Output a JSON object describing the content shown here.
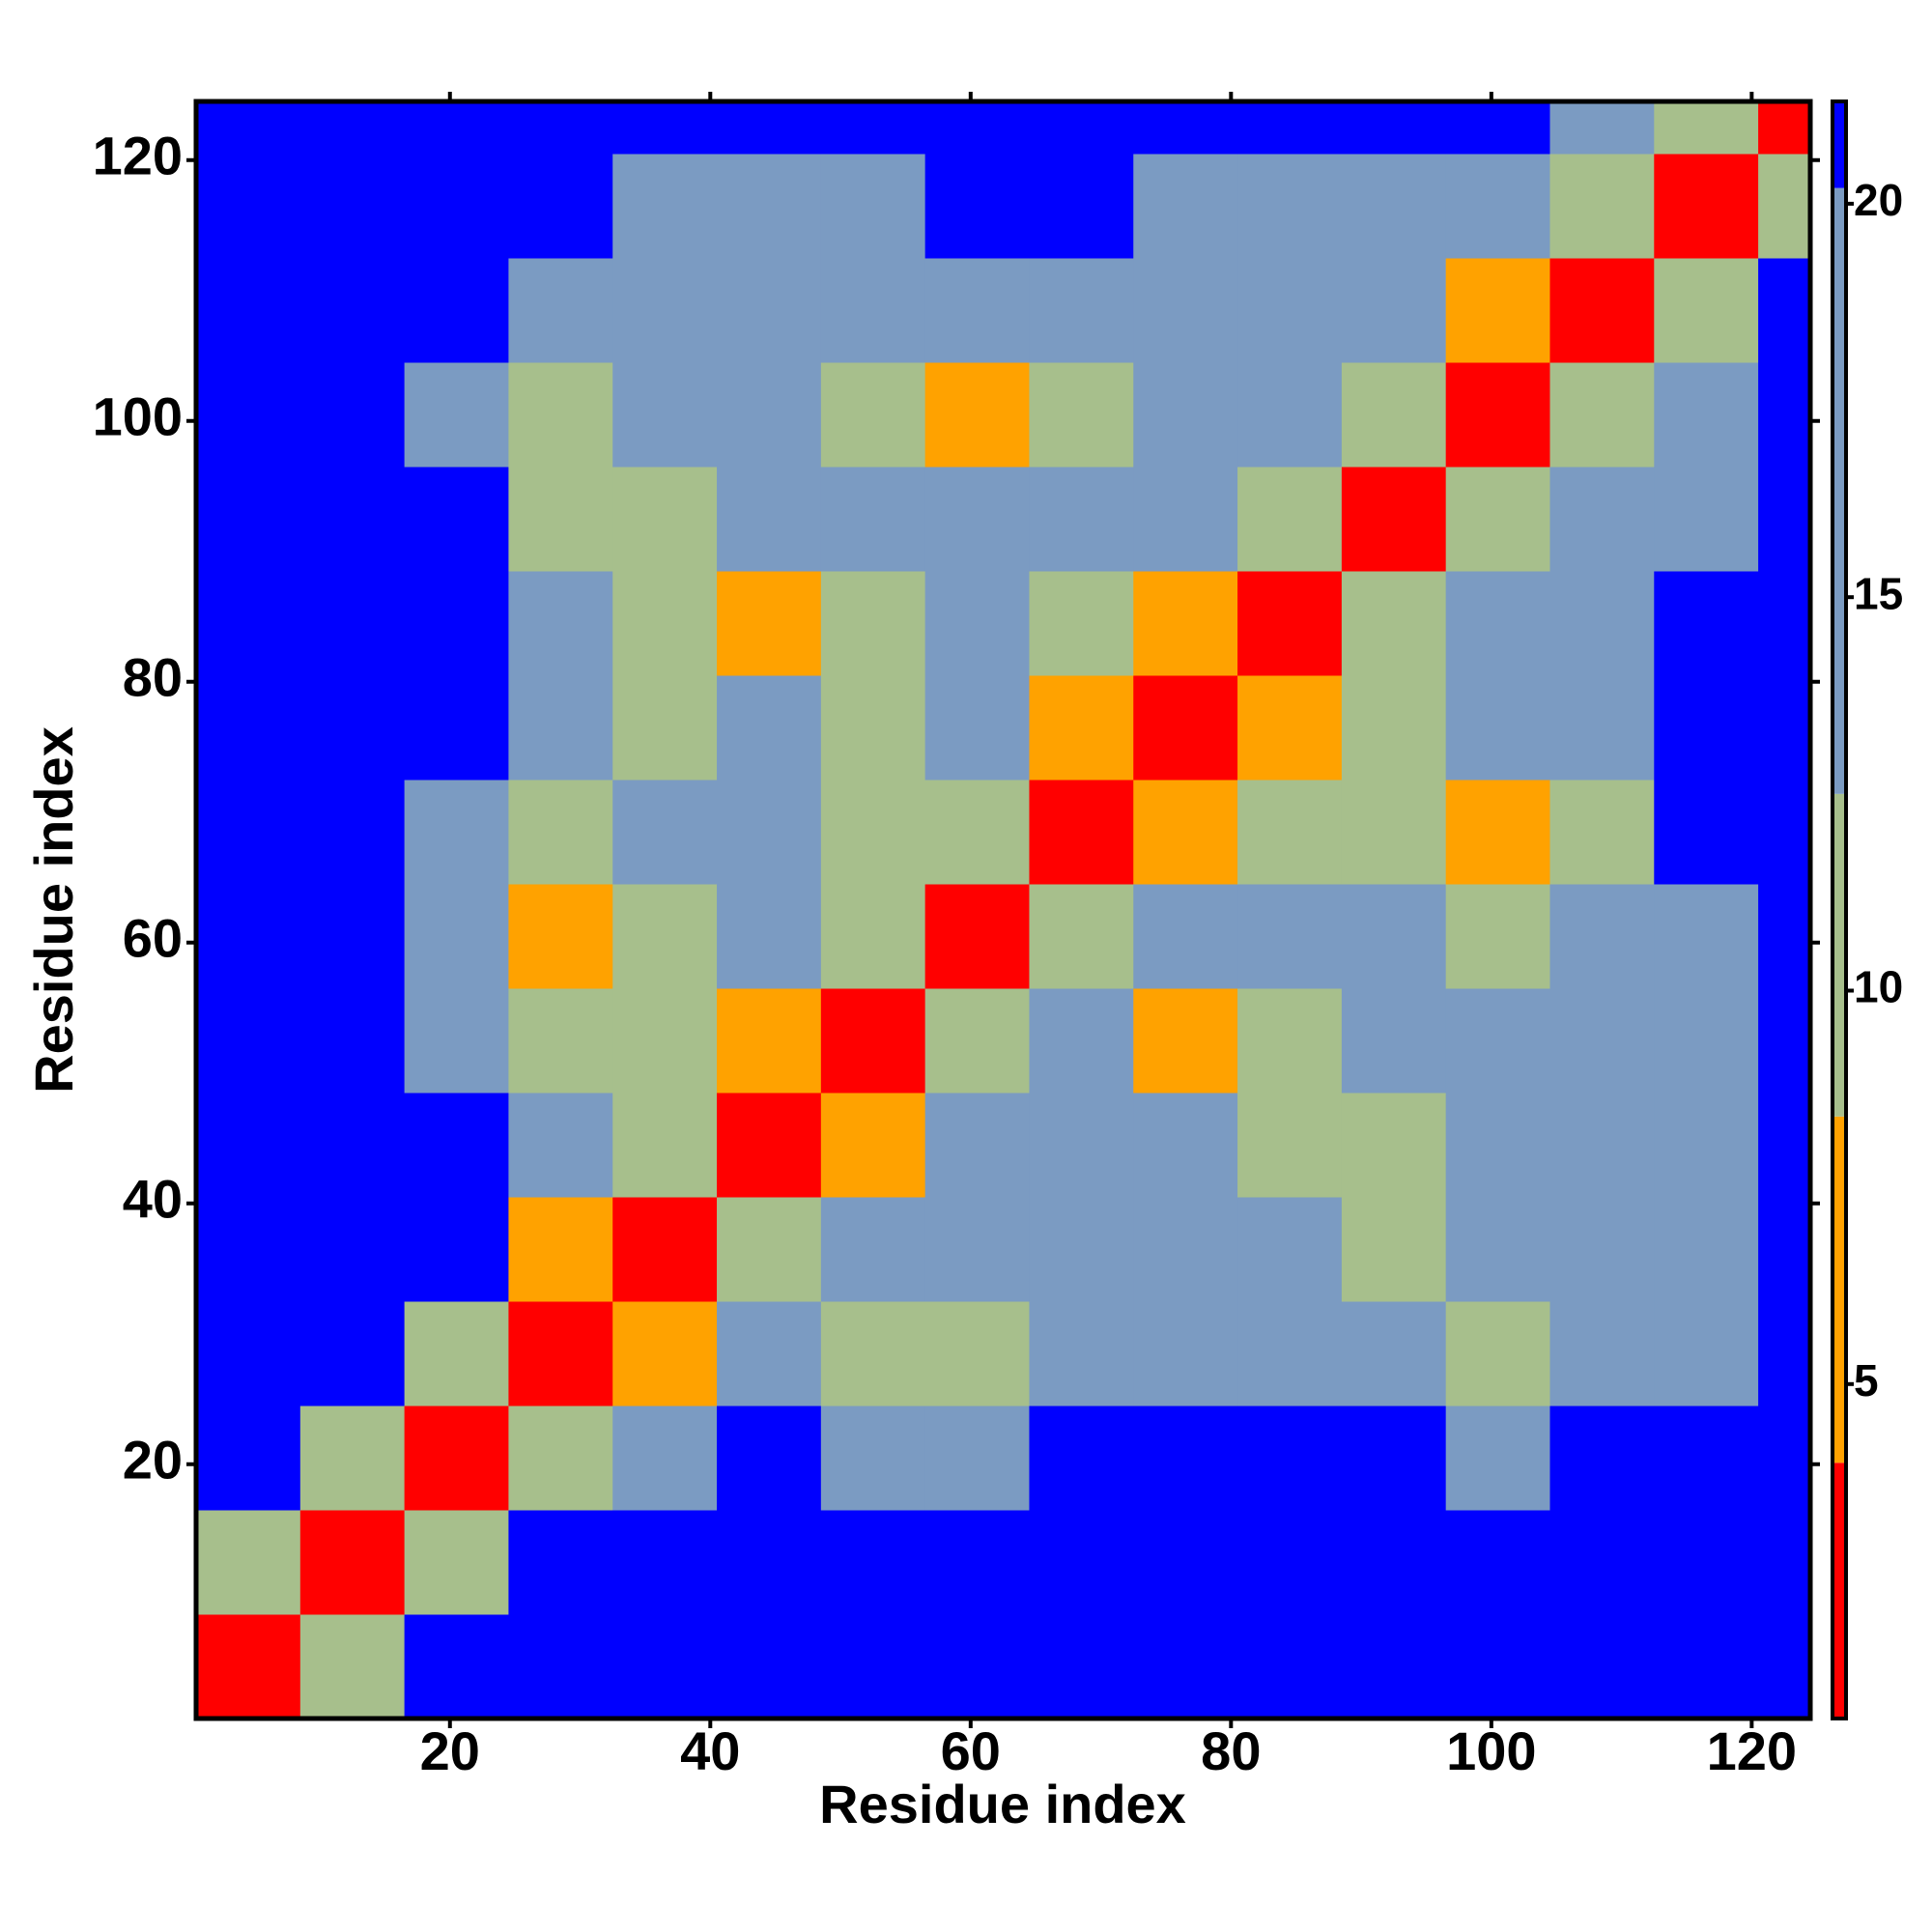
{
  "chart_data": {
    "type": "heatmap",
    "x_label": "Residue index",
    "y_label": "Residue index",
    "x_bins": [
      0.5,
      8.5,
      16.5,
      24.5,
      32.5,
      40.5,
      48.5,
      56.5,
      64.5,
      72.5,
      80.5,
      88.5,
      96.5,
      104.5,
      112.5,
      120.5,
      124.5
    ],
    "y_bins": [
      0.5,
      8.5,
      16.5,
      24.5,
      32.5,
      40.5,
      48.5,
      56.5,
      64.5,
      72.5,
      80.5,
      88.5,
      96.5,
      104.5,
      112.5,
      120.5,
      124.5
    ],
    "values": [
      [
        3,
        9,
        21,
        21,
        21,
        21,
        21,
        21,
        21,
        21,
        21,
        21,
        21,
        21,
        21,
        21
      ],
      [
        9,
        3,
        10,
        21,
        21,
        21,
        21,
        21,
        21,
        21,
        21,
        21,
        21,
        21,
        21,
        21
      ],
      [
        21,
        10,
        3,
        10,
        18,
        21,
        18,
        18,
        21,
        21,
        21,
        21,
        19,
        21,
        21,
        21
      ],
      [
        21,
        21,
        10,
        3,
        8,
        15,
        10,
        12,
        16,
        18,
        15,
        14,
        10,
        14,
        17,
        21
      ],
      [
        21,
        21,
        21,
        8,
        3,
        9,
        13,
        16,
        20,
        16,
        13,
        12,
        20,
        15,
        13,
        21
      ],
      [
        21,
        21,
        21,
        17,
        9,
        3,
        7,
        14,
        16,
        14,
        9,
        12,
        15,
        16,
        19,
        21
      ],
      [
        21,
        21,
        19,
        10,
        11,
        8,
        3,
        10,
        13,
        8,
        11,
        13,
        18,
        15,
        19,
        21
      ],
      [
        21,
        21,
        14,
        8,
        12,
        20,
        10,
        3,
        11,
        16,
        20,
        13,
        10,
        13,
        19,
        21
      ],
      [
        21,
        21,
        16,
        12,
        16,
        14,
        10,
        9,
        3,
        8,
        12,
        11,
        8,
        12,
        21,
        21
      ],
      [
        21,
        21,
        21,
        15,
        12,
        13,
        11,
        14,
        8,
        3,
        7,
        12,
        14,
        15,
        21,
        21
      ],
      [
        21,
        21,
        21,
        13,
        12,
        8,
        9,
        16,
        12,
        8,
        3,
        9,
        13,
        18,
        21,
        21
      ],
      [
        21,
        21,
        21,
        12,
        12,
        13,
        18,
        20,
        14,
        15,
        10,
        3,
        10,
        14,
        16,
        21
      ],
      [
        21,
        21,
        15,
        10,
        14,
        17,
        12,
        8,
        9,
        13,
        16,
        11,
        3,
        9,
        15,
        21
      ],
      [
        21,
        21,
        21,
        15,
        17,
        14,
        15,
        14,
        14,
        15,
        16,
        14,
        8,
        3,
        10,
        21
      ],
      [
        21,
        21,
        21,
        21,
        18,
        16,
        19,
        21,
        21,
        19,
        18,
        19,
        16,
        10,
        3,
        9
      ],
      [
        21,
        21,
        21,
        21,
        21,
        21,
        21,
        21,
        21,
        21,
        21,
        21,
        21,
        18,
        9,
        3
      ]
    ],
    "xlim": [
      0.5,
      124.5
    ],
    "ylim": [
      0.5,
      124.5
    ],
    "xticks": [
      20,
      40,
      60,
      80,
      100,
      120
    ],
    "yticks": [
      20,
      40,
      60,
      80,
      100,
      120
    ],
    "colorbar": {
      "lim": [
        0.75,
        21.3
      ],
      "ticks": [
        5,
        10,
        15,
        20
      ],
      "thresholds": [
        4,
        8.4,
        12.5,
        20.2
      ],
      "colors": [
        "#ff0000",
        "#ffa200",
        "#a7bf8c",
        "#7b9bc2",
        "#0000ff"
      ]
    }
  }
}
